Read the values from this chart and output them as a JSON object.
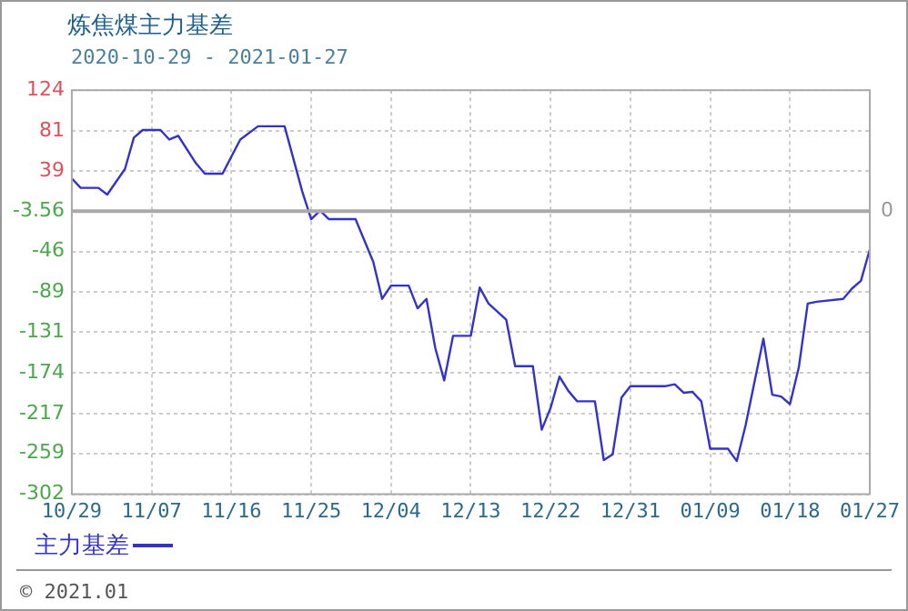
{
  "chart_data": {
    "type": "line",
    "title": "炼焦煤主力基差",
    "subtitle": "2020-10-29 - 2021-01-27",
    "x": [
      "2020-10-29",
      "2020-10-30",
      "2020-11-01",
      "2020-11-02",
      "2020-11-04",
      "2020-11-05",
      "2020-11-06",
      "2020-11-08",
      "2020-11-09",
      "2020-11-10",
      "2020-11-12",
      "2020-11-13",
      "2020-11-15",
      "2020-11-17",
      "2020-11-19",
      "2020-11-22",
      "2020-11-24",
      "2020-11-25",
      "2020-11-26",
      "2020-11-27",
      "2020-11-30",
      "2020-12-02",
      "2020-12-03",
      "2020-12-04",
      "2020-12-06",
      "2020-12-07",
      "2020-12-08",
      "2020-12-09",
      "2020-12-10",
      "2020-12-11",
      "2020-12-13",
      "2020-12-14",
      "2020-12-15",
      "2020-12-17",
      "2020-12-18",
      "2020-12-20",
      "2020-12-21",
      "2020-12-22",
      "2020-12-23",
      "2020-12-24",
      "2020-12-25",
      "2020-12-27",
      "2020-12-28",
      "2020-12-29",
      "2020-12-30",
      "2020-12-31",
      "2021-01-04",
      "2021-01-05",
      "2021-01-06",
      "2021-01-07",
      "2021-01-08",
      "2021-01-09",
      "2021-01-11",
      "2021-01-12",
      "2021-01-13",
      "2021-01-15",
      "2021-01-16",
      "2021-01-17",
      "2021-01-18",
      "2021-01-19",
      "2021-01-20",
      "2021-01-21",
      "2021-01-24",
      "2021-01-25",
      "2021-01-26",
      "2021-01-27"
    ],
    "series": [
      {
        "name": "主力基差",
        "color": "#3333cc",
        "values": [
          31,
          21,
          21,
          14,
          41,
          74,
          82,
          82,
          72,
          76,
          47,
          36,
          36,
          72,
          86,
          86,
          17,
          -12,
          -3,
          -12,
          -12,
          -57,
          -96,
          -82,
          -82,
          -106,
          -96,
          -148,
          -182,
          -135,
          -135,
          -84,
          -101,
          -118,
          -167,
          -167,
          -234,
          -211,
          -178,
          -193,
          -204,
          -204,
          -266,
          -260,
          -200,
          -188,
          -188,
          -186,
          -195,
          -194,
          -204,
          -254,
          -254,
          -267,
          -229,
          -138,
          -197,
          -199,
          -207,
          -168,
          -101,
          -99,
          -96,
          -85,
          -77,
          -44
        ]
      }
    ],
    "xlim": [
      "2020-10-29",
      "2021-01-27"
    ],
    "xticks": [
      {
        "value": "2020-10-29",
        "label": "10/29"
      },
      {
        "value": "2020-11-07",
        "label": "11/07"
      },
      {
        "value": "2020-11-16",
        "label": "11/16"
      },
      {
        "value": "2020-11-25",
        "label": "11/25"
      },
      {
        "value": "2020-12-04",
        "label": "12/04"
      },
      {
        "value": "2020-12-13",
        "label": "12/13"
      },
      {
        "value": "2020-12-22",
        "label": "12/22"
      },
      {
        "value": "2020-12-31",
        "label": "12/31"
      },
      {
        "value": "2021-01-09",
        "label": "01/09"
      },
      {
        "value": "2021-01-18",
        "label": "01/18"
      },
      {
        "value": "2021-01-27",
        "label": "01/27"
      }
    ],
    "ylim": [
      -302,
      124
    ],
    "yticks": [
      -302,
      -259,
      -217,
      -174,
      -131,
      -89,
      -46,
      -3.56,
      39,
      81,
      124
    ],
    "ref_lines": [
      {
        "axis": "y",
        "value": -3.56,
        "color": "#aaaaaa"
      }
    ],
    "grid": true,
    "legend": "bottom left",
    "marker": "none",
    "line_style": "solid",
    "annotations": [
      "© 2021.01",
      "0"
    ]
  }
}
